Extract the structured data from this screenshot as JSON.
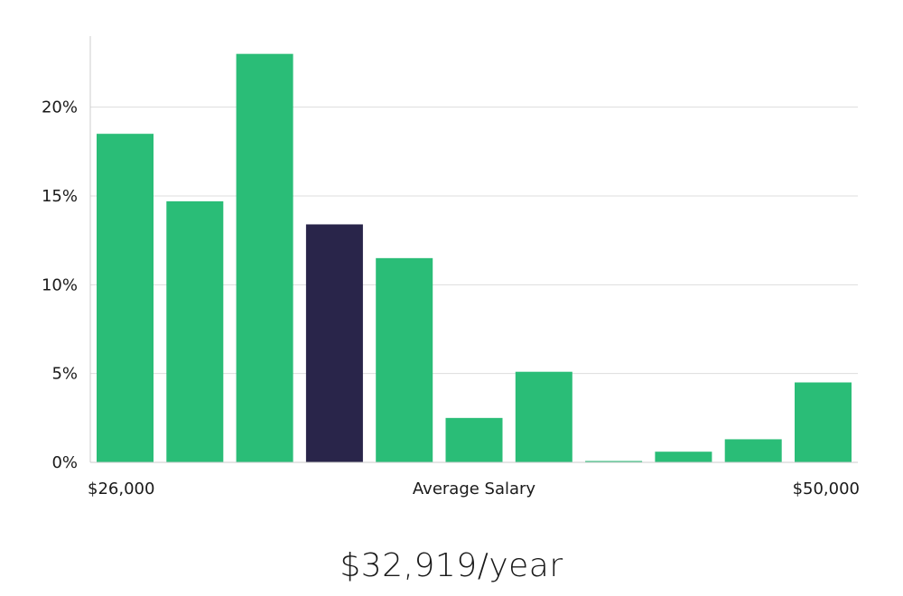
{
  "chart_data": {
    "type": "bar",
    "title": "",
    "xlabel": "Average Salary",
    "ylabel": "",
    "x_min_label": "$26,000",
    "x_max_label": "$50,000",
    "ylim": [
      0,
      24
    ],
    "yticks": [
      0,
      5,
      10,
      15,
      20
    ],
    "ytick_labels": [
      "0%",
      "5%",
      "10%",
      "15%",
      "20%"
    ],
    "values": [
      18.5,
      14.7,
      23.0,
      13.4,
      11.5,
      2.5,
      5.1,
      0.05,
      0.6,
      1.3,
      4.5
    ],
    "highlight_index": 3,
    "colors": {
      "bar": "#2abd77",
      "highlight": "#29254a",
      "grid": "#dddddd",
      "axis": "#cccccc"
    }
  },
  "summary": {
    "salary": "$32,919/year"
  }
}
